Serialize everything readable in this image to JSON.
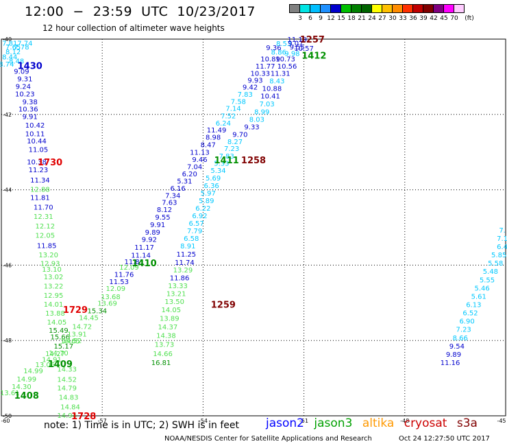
{
  "header": {
    "title": "12:00  −  23:59  UTC  10/23/2017",
    "subtitle": "12 hour collection of altimeter wave heights"
  },
  "colorbar": {
    "colors": [
      "#808080",
      "#00e5e5",
      "#00bfff",
      "#1e90ff",
      "#0000cd",
      "#00c000",
      "#008000",
      "#006400",
      "#ffff00",
      "#ffc000",
      "#ff8c00",
      "#ff3000",
      "#c00000",
      "#800000",
      "#800080",
      "#ff00ff",
      "#ffccff"
    ],
    "labels": [
      "3",
      "6",
      "9",
      "12",
      "15",
      "18",
      "21",
      "24",
      "27",
      "30",
      "33",
      "36",
      "39",
      "42",
      "45",
      "70"
    ],
    "unit": "(ft)"
  },
  "axes": {
    "lat_ticks": [
      "-40",
      "-42",
      "-44",
      "-46",
      "-48",
      "-50"
    ],
    "lon_ticks": [
      "-60",
      "-57",
      "-54",
      "-51",
      "-48",
      "-45"
    ]
  },
  "notes": "note:  1) Time is in UTC;  2) SWH is in feet",
  "legend": [
    {
      "name": "jason2",
      "color": "#0000ff"
    },
    {
      "name": "jason3",
      "color": "#00a000"
    },
    {
      "name": "altika",
      "color": "#ff9900"
    },
    {
      "name": "cryosat",
      "color": "#cc0000"
    },
    {
      "name": "s3a",
      "color": "#800000"
    }
  ],
  "footer": {
    "agency": "NOAA/NESDIS Center for Satellite Applications and Research",
    "timestamp": "Oct 24 12:27:50 UTC 2017"
  },
  "chart_data": {
    "type": "scatter",
    "xlim": [
      -60,
      -45
    ],
    "ylim": [
      -50,
      -40
    ],
    "grid": true,
    "palette": {
      "lb": "#00c8ff",
      "db": "#0000cd",
      "lg": "#50e050",
      "gr": "#009000",
      "rd": "#e00000",
      "mr": "#800000"
    },
    "time_labels": [
      {
        "text": "1430",
        "lon": -59.15,
        "lat": -40.7,
        "c": "db"
      },
      {
        "text": "1730",
        "lon": -58.55,
        "lat": -43.26,
        "c": "rd"
      },
      {
        "text": "1729",
        "lon": -57.8,
        "lat": -47.18,
        "c": "rd"
      },
      {
        "text": "1409",
        "lon": -58.25,
        "lat": -48.62,
        "c": "gr"
      },
      {
        "text": "1408",
        "lon": -59.25,
        "lat": -49.45,
        "c": "gr"
      },
      {
        "text": "1728",
        "lon": -57.55,
        "lat": -50.0,
        "c": "rd"
      },
      {
        "text": "1410",
        "lon": -55.75,
        "lat": -45.94,
        "c": "gr"
      },
      {
        "text": "1411",
        "lon": -53.3,
        "lat": -43.21,
        "c": "gr"
      },
      {
        "text": "1258",
        "lon": -52.5,
        "lat": -43.21,
        "c": "mr"
      },
      {
        "text": "1259",
        "lon": -53.4,
        "lat": -47.04,
        "c": "mr"
      },
      {
        "text": "1257",
        "lon": -50.75,
        "lat": -40.0,
        "c": "mr"
      },
      {
        "text": "1412",
        "lon": -50.7,
        "lat": -40.43,
        "c": "gr"
      }
    ],
    "points": [
      {
        "v": "7.81",
        "lon": -59.75,
        "lat": -40.1,
        "c": "lb"
      },
      {
        "v": "7.74",
        "lon": -59.3,
        "lat": -40.1,
        "c": "lb"
      },
      {
        "v": "7.65",
        "lon": -59.65,
        "lat": -40.2,
        "c": "lb"
      },
      {
        "v": "7.78",
        "lon": -59.4,
        "lat": -40.2,
        "c": "lb"
      },
      {
        "v": "8.12",
        "lon": -59.65,
        "lat": -40.33,
        "c": "lb"
      },
      {
        "v": "8.44",
        "lon": -59.75,
        "lat": -40.46,
        "c": "lb"
      },
      {
        "v": "8.48",
        "lon": -59.55,
        "lat": -40.57,
        "c": "lb"
      },
      {
        "v": "8.74",
        "lon": -59.85,
        "lat": -40.66,
        "c": "lb"
      },
      {
        "v": "9.09",
        "lon": -59.4,
        "lat": -40.85,
        "c": "db"
      },
      {
        "v": "9.31",
        "lon": -59.3,
        "lat": -41.05,
        "c": "db"
      },
      {
        "v": "9.24",
        "lon": -59.35,
        "lat": -41.25,
        "c": "db"
      },
      {
        "v": "10.23",
        "lon": -59.3,
        "lat": -41.45,
        "c": "db"
      },
      {
        "v": "9.38",
        "lon": -59.15,
        "lat": -41.66,
        "c": "db"
      },
      {
        "v": "10.36",
        "lon": -59.2,
        "lat": -41.85,
        "c": "db"
      },
      {
        "v": "9.91",
        "lon": -59.15,
        "lat": -42.05,
        "c": "db"
      },
      {
        "v": "10.42",
        "lon": -59.0,
        "lat": -42.28,
        "c": "db"
      },
      {
        "v": "10.11",
        "lon": -59.0,
        "lat": -42.5,
        "c": "db"
      },
      {
        "v": "10.44",
        "lon": -58.95,
        "lat": -42.7,
        "c": "db"
      },
      {
        "v": "11.05",
        "lon": -58.9,
        "lat": -42.92,
        "c": "db"
      },
      {
        "v": "10.38",
        "lon": -58.95,
        "lat": -43.25,
        "c": "db"
      },
      {
        "v": "11.23",
        "lon": -58.9,
        "lat": -43.46,
        "c": "db"
      },
      {
        "v": "11.34",
        "lon": -58.85,
        "lat": -43.73,
        "c": "db"
      },
      {
        "v": "12.88",
        "lon": -58.85,
        "lat": -43.98,
        "c": "lg"
      },
      {
        "v": "11.81",
        "lon": -58.85,
        "lat": -44.2,
        "c": "db"
      },
      {
        "v": "11.70",
        "lon": -58.75,
        "lat": -44.45,
        "c": "db"
      },
      {
        "v": "12.31",
        "lon": -58.75,
        "lat": -44.7,
        "c": "lg"
      },
      {
        "v": "12.12",
        "lon": -58.7,
        "lat": -44.95,
        "c": "lg"
      },
      {
        "v": "12.05",
        "lon": -58.7,
        "lat": -45.2,
        "c": "lg"
      },
      {
        "v": "11.85",
        "lon": -58.65,
        "lat": -45.47,
        "c": "db"
      },
      {
        "v": "13.20",
        "lon": -58.6,
        "lat": -45.72,
        "c": "lg"
      },
      {
        "v": "12.93",
        "lon": -58.55,
        "lat": -45.95,
        "c": "lg"
      },
      {
        "v": "13.10",
        "lon": -58.5,
        "lat": -46.1,
        "c": "lg"
      },
      {
        "v": "13.02",
        "lon": -58.45,
        "lat": -46.3,
        "c": "lg"
      },
      {
        "v": "13.22",
        "lon": -58.45,
        "lat": -46.55,
        "c": "lg"
      },
      {
        "v": "12.95",
        "lon": -58.45,
        "lat": -46.79,
        "c": "lg"
      },
      {
        "v": "14.01",
        "lon": -58.45,
        "lat": -47.03,
        "c": "lg"
      },
      {
        "v": "13.88",
        "lon": -58.4,
        "lat": -47.27,
        "c": "lg"
      },
      {
        "v": "14.05",
        "lon": -58.35,
        "lat": -47.5,
        "c": "lg"
      },
      {
        "v": "15.49",
        "lon": -58.3,
        "lat": -47.72,
        "c": "gr"
      },
      {
        "v": "15.66",
        "lon": -58.25,
        "lat": -47.9,
        "c": "gr"
      },
      {
        "v": "16.65",
        "lon": -57.95,
        "lat": -48.01,
        "c": "lg"
      },
      {
        "v": "15.17",
        "lon": -58.15,
        "lat": -48.14,
        "c": "gr"
      },
      {
        "v": "14.70",
        "lon": -58.3,
        "lat": -48.32,
        "c": "lg"
      },
      {
        "v": "14.91",
        "lon": -58.5,
        "lat": -48.5,
        "c": "lg"
      },
      {
        "v": "14.27",
        "lon": -58.4,
        "lat": -48.34,
        "c": "lg"
      },
      {
        "v": "13.06",
        "lon": -58.7,
        "lat": -48.63,
        "c": "lg"
      },
      {
        "v": "14.33",
        "lon": -58.05,
        "lat": -48.75,
        "c": "lg"
      },
      {
        "v": "14.99",
        "lon": -59.05,
        "lat": -48.8,
        "c": "lg"
      },
      {
        "v": "14.99",
        "lon": -59.25,
        "lat": -49.02,
        "c": "lg"
      },
      {
        "v": "14.52",
        "lon": -58.05,
        "lat": -49.03,
        "c": "lg"
      },
      {
        "v": "14.30",
        "lon": -59.4,
        "lat": -49.22,
        "c": "lg"
      },
      {
        "v": "14.79",
        "lon": -58.05,
        "lat": -49.25,
        "c": "lg"
      },
      {
        "v": "13.61",
        "lon": -59.75,
        "lat": -49.38,
        "c": "lg"
      },
      {
        "v": "14.83",
        "lon": -58.0,
        "lat": -49.5,
        "c": "lg"
      },
      {
        "v": "14.84",
        "lon": -57.95,
        "lat": -49.75,
        "c": "lg"
      },
      {
        "v": "14.94",
        "lon": -58.05,
        "lat": -49.98,
        "c": "lg"
      },
      {
        "v": "15.34",
        "lon": -57.15,
        "lat": -47.2,
        "c": "gr"
      },
      {
        "v": "13.69",
        "lon": -56.85,
        "lat": -47.0,
        "c": "lg"
      },
      {
        "v": "13.68",
        "lon": -56.75,
        "lat": -46.83,
        "c": "lg"
      },
      {
        "v": "14.45",
        "lon": -57.4,
        "lat": -47.39,
        "c": "lg"
      },
      {
        "v": "14.72",
        "lon": -57.6,
        "lat": -47.62,
        "c": "lg"
      },
      {
        "v": "13.91",
        "lon": -57.75,
        "lat": -47.82,
        "c": "lg"
      },
      {
        "v": "14.52",
        "lon": -57.9,
        "lat": -48.0,
        "c": "lg"
      },
      {
        "v": "12.09",
        "lon": -56.6,
        "lat": -46.61,
        "c": "lg"
      },
      {
        "v": "11.53",
        "lon": -56.5,
        "lat": -46.43,
        "c": "db"
      },
      {
        "v": "11.76",
        "lon": -56.35,
        "lat": -46.24,
        "c": "db"
      },
      {
        "v": "12.09",
        "lon": -56.2,
        "lat": -46.05,
        "c": "lg"
      },
      {
        "v": "11.81",
        "lon": -56.05,
        "lat": -45.9,
        "c": "db"
      },
      {
        "v": "11.14",
        "lon": -55.85,
        "lat": -45.73,
        "c": "db"
      },
      {
        "v": "11.17",
        "lon": -55.75,
        "lat": -45.52,
        "c": "db"
      },
      {
        "v": "9.92",
        "lon": -55.6,
        "lat": -45.31,
        "c": "db"
      },
      {
        "v": "9.89",
        "lon": -55.5,
        "lat": -45.12,
        "c": "db"
      },
      {
        "v": "9.91",
        "lon": -55.35,
        "lat": -44.92,
        "c": "db"
      },
      {
        "v": "9.55",
        "lon": -55.2,
        "lat": -44.72,
        "c": "db"
      },
      {
        "v": "8.12",
        "lon": -55.15,
        "lat": -44.52,
        "c": "db"
      },
      {
        "v": "7.63",
        "lon": -55.0,
        "lat": -44.33,
        "c": "db"
      },
      {
        "v": "7.34",
        "lon": -54.9,
        "lat": -44.14,
        "c": "db"
      },
      {
        "v": "6.16",
        "lon": -54.75,
        "lat": -43.95,
        "c": "db"
      },
      {
        "v": "5.31",
        "lon": -54.55,
        "lat": -43.76,
        "c": "db"
      },
      {
        "v": "6.20",
        "lon": -54.4,
        "lat": -43.57,
        "c": "db"
      },
      {
        "v": "7.04",
        "lon": -54.25,
        "lat": -43.38,
        "c": "db"
      },
      {
        "v": "9.46",
        "lon": -54.1,
        "lat": -43.19,
        "c": "db"
      },
      {
        "v": "11.13",
        "lon": -54.1,
        "lat": -43.0,
        "c": "db"
      },
      {
        "v": "8.47",
        "lon": -53.85,
        "lat": -42.8,
        "c": "db"
      },
      {
        "v": "8.98",
        "lon": -53.7,
        "lat": -42.6,
        "c": "db"
      },
      {
        "v": "11.49",
        "lon": -53.6,
        "lat": -42.4,
        "c": "db"
      },
      {
        "v": "6.24",
        "lon": -53.4,
        "lat": -42.22,
        "c": "lb"
      },
      {
        "v": "7.52",
        "lon": -53.25,
        "lat": -42.03,
        "c": "lb"
      },
      {
        "v": "7.14",
        "lon": -53.1,
        "lat": -41.83,
        "c": "lb"
      },
      {
        "v": "7.58",
        "lon": -52.95,
        "lat": -41.65,
        "c": "lb"
      },
      {
        "v": "7.83",
        "lon": -52.75,
        "lat": -41.46,
        "c": "lb"
      },
      {
        "v": "9.42",
        "lon": -52.6,
        "lat": -41.27,
        "c": "db"
      },
      {
        "v": "9.93",
        "lon": -52.45,
        "lat": -41.08,
        "c": "db"
      },
      {
        "v": "10.33",
        "lon": -52.3,
        "lat": -40.9,
        "c": "db"
      },
      {
        "v": "11.77",
        "lon": -52.15,
        "lat": -40.71,
        "c": "db"
      },
      {
        "v": "10.89",
        "lon": -52.0,
        "lat": -40.52,
        "c": "db"
      },
      {
        "v": "8.86",
        "lon": -51.75,
        "lat": -40.34,
        "c": "lb"
      },
      {
        "v": "9.36",
        "lon": -51.9,
        "lat": -40.22,
        "c": "db"
      },
      {
        "v": "8.53",
        "lon": -51.6,
        "lat": -40.11,
        "c": "lb"
      },
      {
        "v": "11.19",
        "lon": -51.2,
        "lat": -40.0,
        "c": "db"
      },
      {
        "v": "9.07",
        "lon": -51.25,
        "lat": -40.1,
        "c": "db"
      },
      {
        "v": "9.55",
        "lon": -51.2,
        "lat": -40.2,
        "c": "db"
      },
      {
        "v": "10.57",
        "lon": -51.0,
        "lat": -40.24,
        "c": "db"
      },
      {
        "v": "9.98",
        "lon": -51.35,
        "lat": -40.37,
        "c": "lb"
      },
      {
        "v": "10.73",
        "lon": -51.55,
        "lat": -40.52,
        "c": "db"
      },
      {
        "v": "10.56",
        "lon": -51.5,
        "lat": -40.71,
        "c": "db"
      },
      {
        "v": "11.31",
        "lon": -51.7,
        "lat": -40.9,
        "c": "db"
      },
      {
        "v": "8.43",
        "lon": -51.8,
        "lat": -41.1,
        "c": "lb"
      },
      {
        "v": "10.88",
        "lon": -51.95,
        "lat": -41.3,
        "c": "db"
      },
      {
        "v": "10.41",
        "lon": -52.0,
        "lat": -41.5,
        "c": "db"
      },
      {
        "v": "7.03",
        "lon": -52.1,
        "lat": -41.71,
        "c": "lb"
      },
      {
        "v": "8.99",
        "lon": -52.25,
        "lat": -41.92,
        "c": "lb"
      },
      {
        "v": "8.03",
        "lon": -52.4,
        "lat": -42.12,
        "c": "lb"
      },
      {
        "v": "9.33",
        "lon": -52.55,
        "lat": -42.32,
        "c": "db"
      },
      {
        "v": "9.70",
        "lon": -52.9,
        "lat": -42.52,
        "c": "db"
      },
      {
        "v": "8.27",
        "lon": -53.05,
        "lat": -42.71,
        "c": "lb"
      },
      {
        "v": "7.23",
        "lon": -53.15,
        "lat": -42.9,
        "c": "lb"
      },
      {
        "v": "7.83",
        "lon": -53.3,
        "lat": -43.1,
        "c": "lb"
      },
      {
        "v": "5.33",
        "lon": -53.45,
        "lat": -43.29,
        "c": "lb"
      },
      {
        "v": "5.34",
        "lon": -53.55,
        "lat": -43.48,
        "c": "lb"
      },
      {
        "v": "5.69",
        "lon": -53.7,
        "lat": -43.68,
        "c": "lb"
      },
      {
        "v": "6.36",
        "lon": -53.75,
        "lat": -43.88,
        "c": "lb"
      },
      {
        "v": "5.97",
        "lon": -53.85,
        "lat": -44.08,
        "c": "lb"
      },
      {
        "v": "5.89",
        "lon": -53.9,
        "lat": -44.28,
        "c": "lb"
      },
      {
        "v": "6.22",
        "lon": -54.0,
        "lat": -44.48,
        "c": "lb"
      },
      {
        "v": "6.92",
        "lon": -54.1,
        "lat": -44.68,
        "c": "lb"
      },
      {
        "v": "6.57",
        "lon": -54.2,
        "lat": -44.88,
        "c": "lb"
      },
      {
        "v": "7.79",
        "lon": -54.25,
        "lat": -45.08,
        "c": "lb"
      },
      {
        "v": "6.58",
        "lon": -54.35,
        "lat": -45.28,
        "c": "lb"
      },
      {
        "v": "8.91",
        "lon": -54.45,
        "lat": -45.48,
        "c": "lb"
      },
      {
        "v": "11.25",
        "lon": -54.5,
        "lat": -45.7,
        "c": "db"
      },
      {
        "v": "11.74",
        "lon": -54.55,
        "lat": -45.92,
        "c": "db"
      },
      {
        "v": "13.29",
        "lon": -54.6,
        "lat": -46.12,
        "c": "lg"
      },
      {
        "v": "11.86",
        "lon": -54.7,
        "lat": -46.33,
        "c": "db"
      },
      {
        "v": "13.33",
        "lon": -54.75,
        "lat": -46.54,
        "c": "lg"
      },
      {
        "v": "13.21",
        "lon": -54.8,
        "lat": -46.75,
        "c": "lg"
      },
      {
        "v": "13.50",
        "lon": -54.85,
        "lat": -46.96,
        "c": "lg"
      },
      {
        "v": "14.05",
        "lon": -54.95,
        "lat": -47.18,
        "c": "lg"
      },
      {
        "v": "13.89",
        "lon": -55.0,
        "lat": -47.4,
        "c": "lg"
      },
      {
        "v": "14.37",
        "lon": -55.05,
        "lat": -47.63,
        "c": "lg"
      },
      {
        "v": "14.38",
        "lon": -55.1,
        "lat": -47.86,
        "c": "lg"
      },
      {
        "v": "13.73",
        "lon": -55.15,
        "lat": -48.1,
        "c": "lg"
      },
      {
        "v": "14.66",
        "lon": -55.2,
        "lat": -48.34,
        "c": "lg"
      },
      {
        "v": "16.81",
        "lon": -55.25,
        "lat": -48.58,
        "c": "gr"
      },
      {
        "v": "7.",
        "lon": -45.1,
        "lat": -45.06,
        "c": "lb"
      },
      {
        "v": "7.1",
        "lon": -45.1,
        "lat": -45.28,
        "c": "lb"
      },
      {
        "v": "6.4",
        "lon": -45.1,
        "lat": -45.5,
        "c": "lb"
      },
      {
        "v": "5.85",
        "lon": -45.2,
        "lat": -45.72,
        "c": "lb"
      },
      {
        "v": "5.58",
        "lon": -45.3,
        "lat": -45.94,
        "c": "lb"
      },
      {
        "v": "5.48",
        "lon": -45.45,
        "lat": -46.16,
        "c": "lb"
      },
      {
        "v": "5.55",
        "lon": -45.55,
        "lat": -46.38,
        "c": "lb"
      },
      {
        "v": "5.46",
        "lon": -45.7,
        "lat": -46.6,
        "c": "lb"
      },
      {
        "v": "5.61",
        "lon": -45.8,
        "lat": -46.82,
        "c": "lb"
      },
      {
        "v": "6.13",
        "lon": -45.95,
        "lat": -47.04,
        "c": "lb"
      },
      {
        "v": "6.52",
        "lon": -46.05,
        "lat": -47.26,
        "c": "lb"
      },
      {
        "v": "6.90",
        "lon": -46.15,
        "lat": -47.48,
        "c": "lb"
      },
      {
        "v": "7.23",
        "lon": -46.25,
        "lat": -47.7,
        "c": "lb"
      },
      {
        "v": "8.66",
        "lon": -46.35,
        "lat": -47.92,
        "c": "lb"
      },
      {
        "v": "9.54",
        "lon": -46.45,
        "lat": -48.14,
        "c": "db"
      },
      {
        "v": "9.89",
        "lon": -46.55,
        "lat": -48.36,
        "c": "db"
      },
      {
        "v": "11.16",
        "lon": -46.65,
        "lat": -48.58,
        "c": "db"
      }
    ]
  }
}
